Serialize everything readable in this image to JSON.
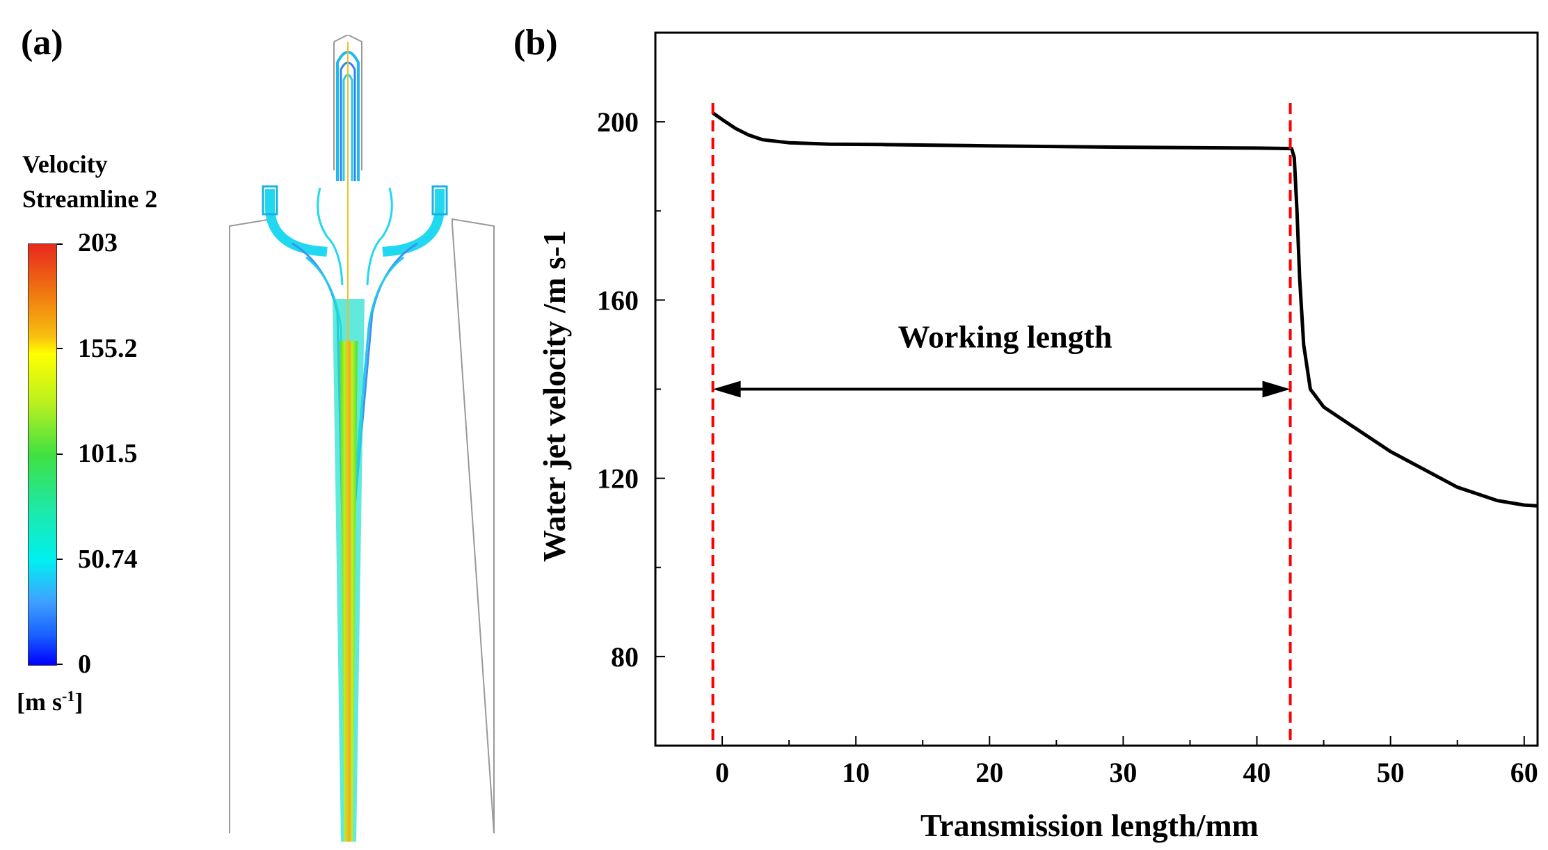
{
  "panel_a": {
    "label": "(a)",
    "legend": {
      "title_line1": "Velocity",
      "title_line2": "Streamline 2",
      "ticks": [
        "203",
        "155.2",
        "101.5",
        "50.74",
        "0"
      ],
      "unit_base": "[m s",
      "unit_sup": "-1",
      "unit_close": "]"
    }
  },
  "panel_b": {
    "label": "(b)",
    "annotation": "Working length"
  },
  "chart_data": {
    "type": "line",
    "title": "",
    "xlabel": "Transmission length/mm",
    "ylabel": "Water jet velocity /m s-1",
    "xlim": [
      -5,
      61
    ],
    "ylim": [
      60,
      220
    ],
    "xticks": [
      0,
      10,
      20,
      30,
      40,
      50,
      60
    ],
    "yticks": [
      80,
      120,
      160,
      200
    ],
    "series": [
      {
        "name": "velocity",
        "color": "#000000",
        "x": [
          -0.7,
          0,
          1,
          2,
          3,
          5,
          8,
          12,
          20,
          30,
          40,
          42.6,
          42.8,
          43.0,
          43.2,
          43.5,
          44,
          45,
          47,
          50,
          55,
          58,
          60,
          61
        ],
        "y": [
          202,
          200.5,
          198.5,
          197,
          196,
          195.3,
          195,
          194.9,
          194.6,
          194.3,
          194.1,
          194,
          192,
          180,
          165,
          150,
          140,
          136,
          132,
          126,
          118,
          115,
          114,
          113.8
        ]
      }
    ],
    "markers": [
      {
        "type": "vline",
        "x": -0.7,
        "color": "#ff0000",
        "style": "dashed"
      },
      {
        "type": "vline",
        "x": 42.5,
        "color": "#ff0000",
        "style": "dashed"
      },
      {
        "type": "double-arrow",
        "x_start": -0.7,
        "x_end": 42.5,
        "y": 140,
        "label": "Working length"
      }
    ]
  }
}
